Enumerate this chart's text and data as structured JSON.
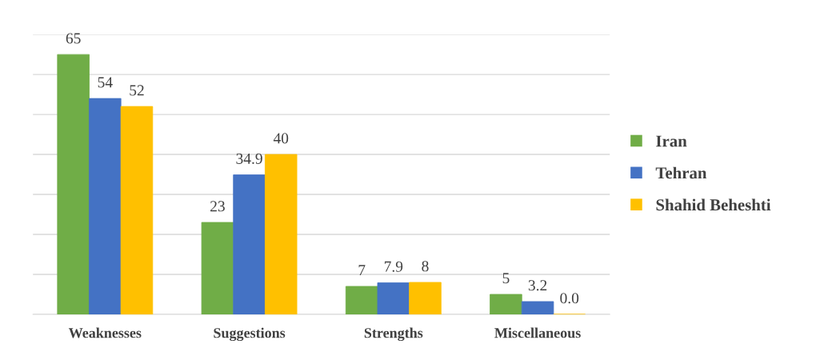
{
  "chart_data": {
    "type": "bar",
    "categories": [
      "Weaknesses",
      "Suggestions",
      "Strengths",
      "Miscellaneous"
    ],
    "series": [
      {
        "name": "Iran",
        "color": "#70ad47",
        "values": [
          65,
          23,
          7,
          5
        ],
        "value_labels": [
          "65",
          "23",
          "7",
          "5"
        ]
      },
      {
        "name": "Tehran",
        "color": "#4472c4",
        "values": [
          54,
          34.9,
          7.9,
          3.2
        ],
        "value_labels": [
          "54",
          "34.9",
          "7.9",
          "3.2"
        ]
      },
      {
        "name": "Shahid Beheshti",
        "color": "#ffc000",
        "values": [
          52,
          40,
          8,
          0
        ],
        "value_labels": [
          "52",
          "40",
          "8",
          "0.0"
        ]
      }
    ],
    "ylim": [
      0,
      70
    ],
    "yticks": [
      {
        "value": 0,
        "label": null
      },
      {
        "value": 10,
        "label": null
      },
      {
        "value": 20,
        "label": null
      },
      {
        "value": 30,
        "label": null
      },
      {
        "value": 40,
        "label": null
      },
      {
        "value": 50,
        "label": null
      },
      {
        "value": 60,
        "label": null
      },
      {
        "value": 70,
        "label": null
      }
    ],
    "tick_labels": "x",
    "grid": "y",
    "legend": "right"
  }
}
